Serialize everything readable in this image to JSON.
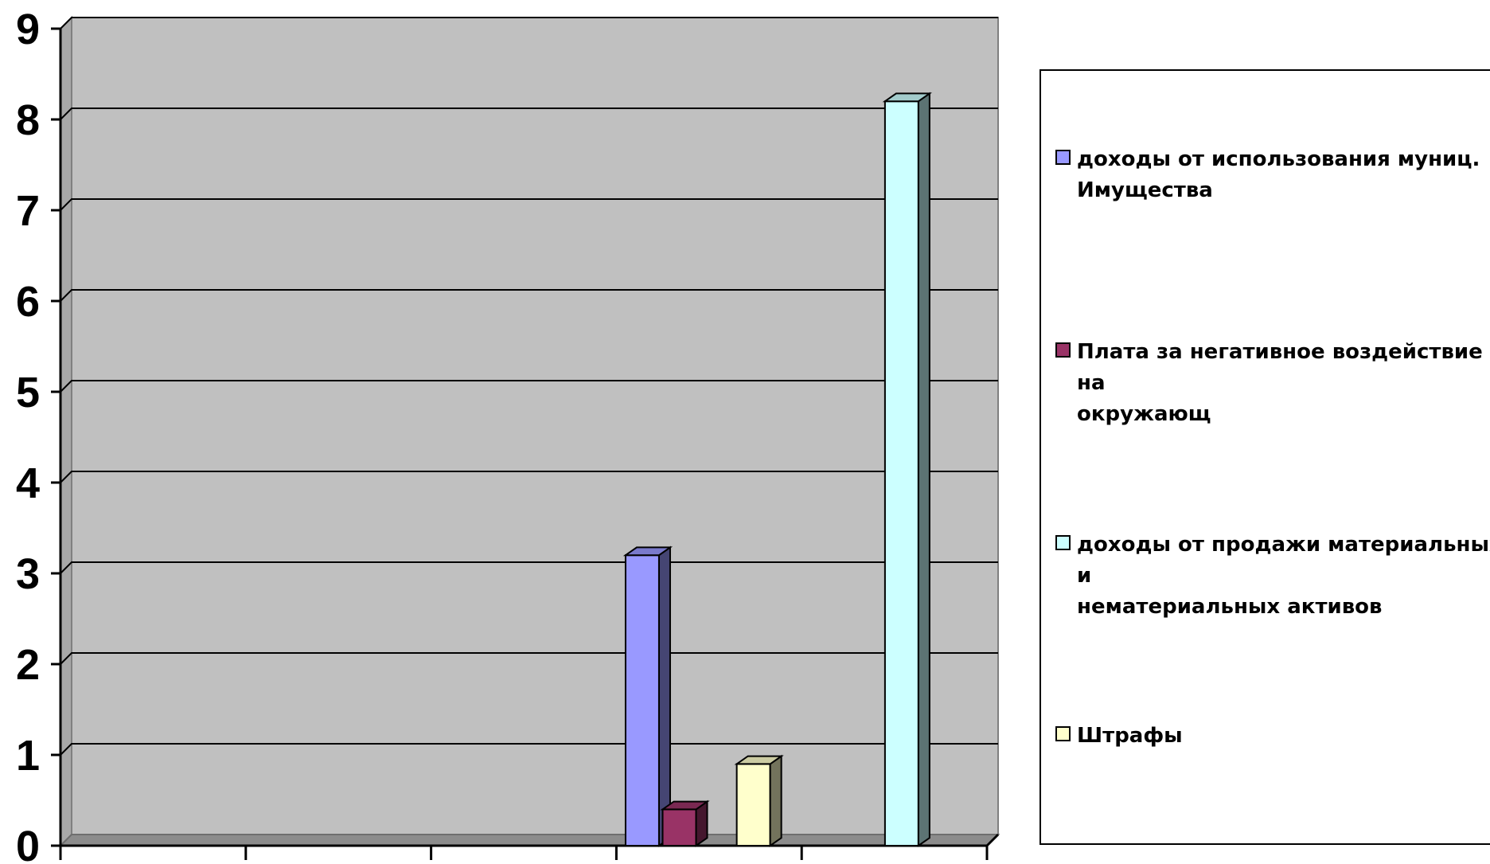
{
  "chart_data": {
    "type": "bar",
    "title": "",
    "xlabel": "",
    "ylabel": "",
    "ylim": [
      0,
      9
    ],
    "yticks": [
      "0",
      "1",
      "2",
      "3",
      "4",
      "5",
      "6",
      "7",
      "8",
      "9"
    ],
    "categories": [
      "",
      "",
      "",
      "",
      ""
    ],
    "series": [
      {
        "name": "доходы от использования муниц.\nИмущества",
        "color": "#9999ff",
        "values": [
          0,
          0,
          0,
          3.2,
          0
        ]
      },
      {
        "name": "Плата за негативное воздействие на\nокружающ",
        "color": "#993366",
        "values": [
          0,
          0,
          0,
          0.4,
          0
        ]
      },
      {
        "name": "доходы от продажи материальных и\nнематериальных активов",
        "color": "#ccffff",
        "values": [
          0,
          0,
          0,
          0,
          8.2
        ]
      },
      {
        "name": "Штрафы",
        "color": "#ffffcc",
        "values": [
          0,
          0,
          0,
          0.9,
          0
        ]
      }
    ],
    "grid": true,
    "legend_position": "right",
    "plot_background": "#c0c0c0"
  }
}
